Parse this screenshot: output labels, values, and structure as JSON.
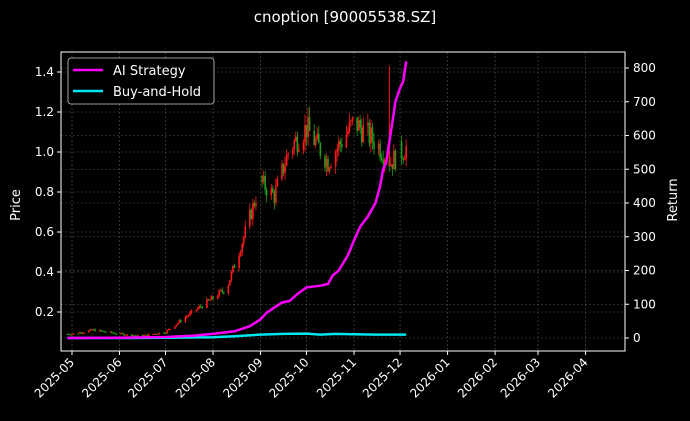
{
  "figure": {
    "title": "cnoption [90005538.SZ]",
    "background": "#000000"
  },
  "chart_data": {
    "type": "line",
    "title": "cnoption [90005538.SZ]",
    "xlabel": "",
    "ylabel_left": "Price",
    "ylabel_right": "Return",
    "x_ticks": [
      "2025-05",
      "2025-06",
      "2025-07",
      "2025-08",
      "2025-09",
      "2025-10",
      "2025-11",
      "2025-12",
      "2026-01",
      "2026-02",
      "2026-03",
      "2026-04"
    ],
    "y_left_ticks": [
      0.2,
      0.4,
      0.6,
      0.8,
      1.0,
      1.2,
      1.4
    ],
    "y_left_lim": [
      0.04,
      1.5
    ],
    "y_right_ticks": [
      0,
      100,
      200,
      300,
      400,
      500,
      600,
      700,
      800
    ],
    "y_right_lim": [
      -25,
      845
    ],
    "grid": true,
    "legend_position": "upper left",
    "legend": [
      {
        "name": "AI Strategy",
        "color": "#ff00ff"
      },
      {
        "name": "Buy-and-Hold",
        "color": "#00e5ee"
      }
    ],
    "candles": {
      "up_color": "#ff1a1a",
      "down_color": "#1e9e1e",
      "approx_close_by_month": [
        {
          "x": "2025-05-01",
          "price": 0.09
        },
        {
          "x": "2025-05-15",
          "price": 0.11
        },
        {
          "x": "2025-06-01",
          "price": 0.09
        },
        {
          "x": "2025-06-15",
          "price": 0.08
        },
        {
          "x": "2025-07-01",
          "price": 0.1
        },
        {
          "x": "2025-07-15",
          "price": 0.18
        },
        {
          "x": "2025-08-01",
          "price": 0.27
        },
        {
          "x": "2025-08-10",
          "price": 0.32
        },
        {
          "x": "2025-08-20",
          "price": 0.55
        },
        {
          "x": "2025-09-01",
          "price": 0.85
        },
        {
          "x": "2025-09-10",
          "price": 0.78
        },
        {
          "x": "2025-09-20",
          "price": 1.02
        },
        {
          "x": "2025-10-01",
          "price": 1.12
        },
        {
          "x": "2025-10-15",
          "price": 0.95
        },
        {
          "x": "2025-11-01",
          "price": 1.15
        },
        {
          "x": "2025-11-15",
          "price": 1.05
        },
        {
          "x": "2025-11-25",
          "price": 0.95
        },
        {
          "x": "2025-12-05",
          "price": 1.02
        }
      ]
    },
    "series": [
      {
        "name": "AI Strategy",
        "color": "#ff00ff",
        "axis": "right",
        "points": [
          [
            "2025-04-28",
            0
          ],
          [
            "2025-06-01",
            1
          ],
          [
            "2025-07-01",
            3
          ],
          [
            "2025-07-20",
            7
          ],
          [
            "2025-08-01",
            12
          ],
          [
            "2025-08-15",
            20
          ],
          [
            "2025-08-25",
            35
          ],
          [
            "2025-09-01",
            55
          ],
          [
            "2025-09-05",
            75
          ],
          [
            "2025-09-10",
            90
          ],
          [
            "2025-09-15",
            105
          ],
          [
            "2025-09-20",
            110
          ],
          [
            "2025-09-25",
            130
          ],
          [
            "2025-10-01",
            150
          ],
          [
            "2025-10-10",
            155
          ],
          [
            "2025-10-15",
            160
          ],
          [
            "2025-10-18",
            185
          ],
          [
            "2025-10-22",
            200
          ],
          [
            "2025-10-28",
            245
          ],
          [
            "2025-11-01",
            290
          ],
          [
            "2025-11-05",
            330
          ],
          [
            "2025-11-10",
            360
          ],
          [
            "2025-11-15",
            400
          ],
          [
            "2025-11-18",
            450
          ],
          [
            "2025-11-20",
            500
          ],
          [
            "2025-11-22",
            520
          ],
          [
            "2025-11-24",
            580
          ],
          [
            "2025-11-26",
            640
          ],
          [
            "2025-11-28",
            700
          ],
          [
            "2025-12-01",
            740
          ],
          [
            "2025-12-03",
            760
          ],
          [
            "2025-12-05",
            820
          ]
        ]
      },
      {
        "name": "Buy-and-Hold",
        "color": "#00e5ee",
        "axis": "right",
        "points": [
          [
            "2025-04-28",
            0
          ],
          [
            "2025-06-01",
            0
          ],
          [
            "2025-07-01",
            1
          ],
          [
            "2025-08-01",
            2
          ],
          [
            "2025-08-15",
            5
          ],
          [
            "2025-09-01",
            10
          ],
          [
            "2025-09-15",
            12
          ],
          [
            "2025-10-01",
            13
          ],
          [
            "2025-10-10",
            10
          ],
          [
            "2025-10-20",
            12
          ],
          [
            "2025-11-01",
            11
          ],
          [
            "2025-11-15",
            10
          ],
          [
            "2025-12-05",
            10
          ]
        ]
      }
    ]
  }
}
